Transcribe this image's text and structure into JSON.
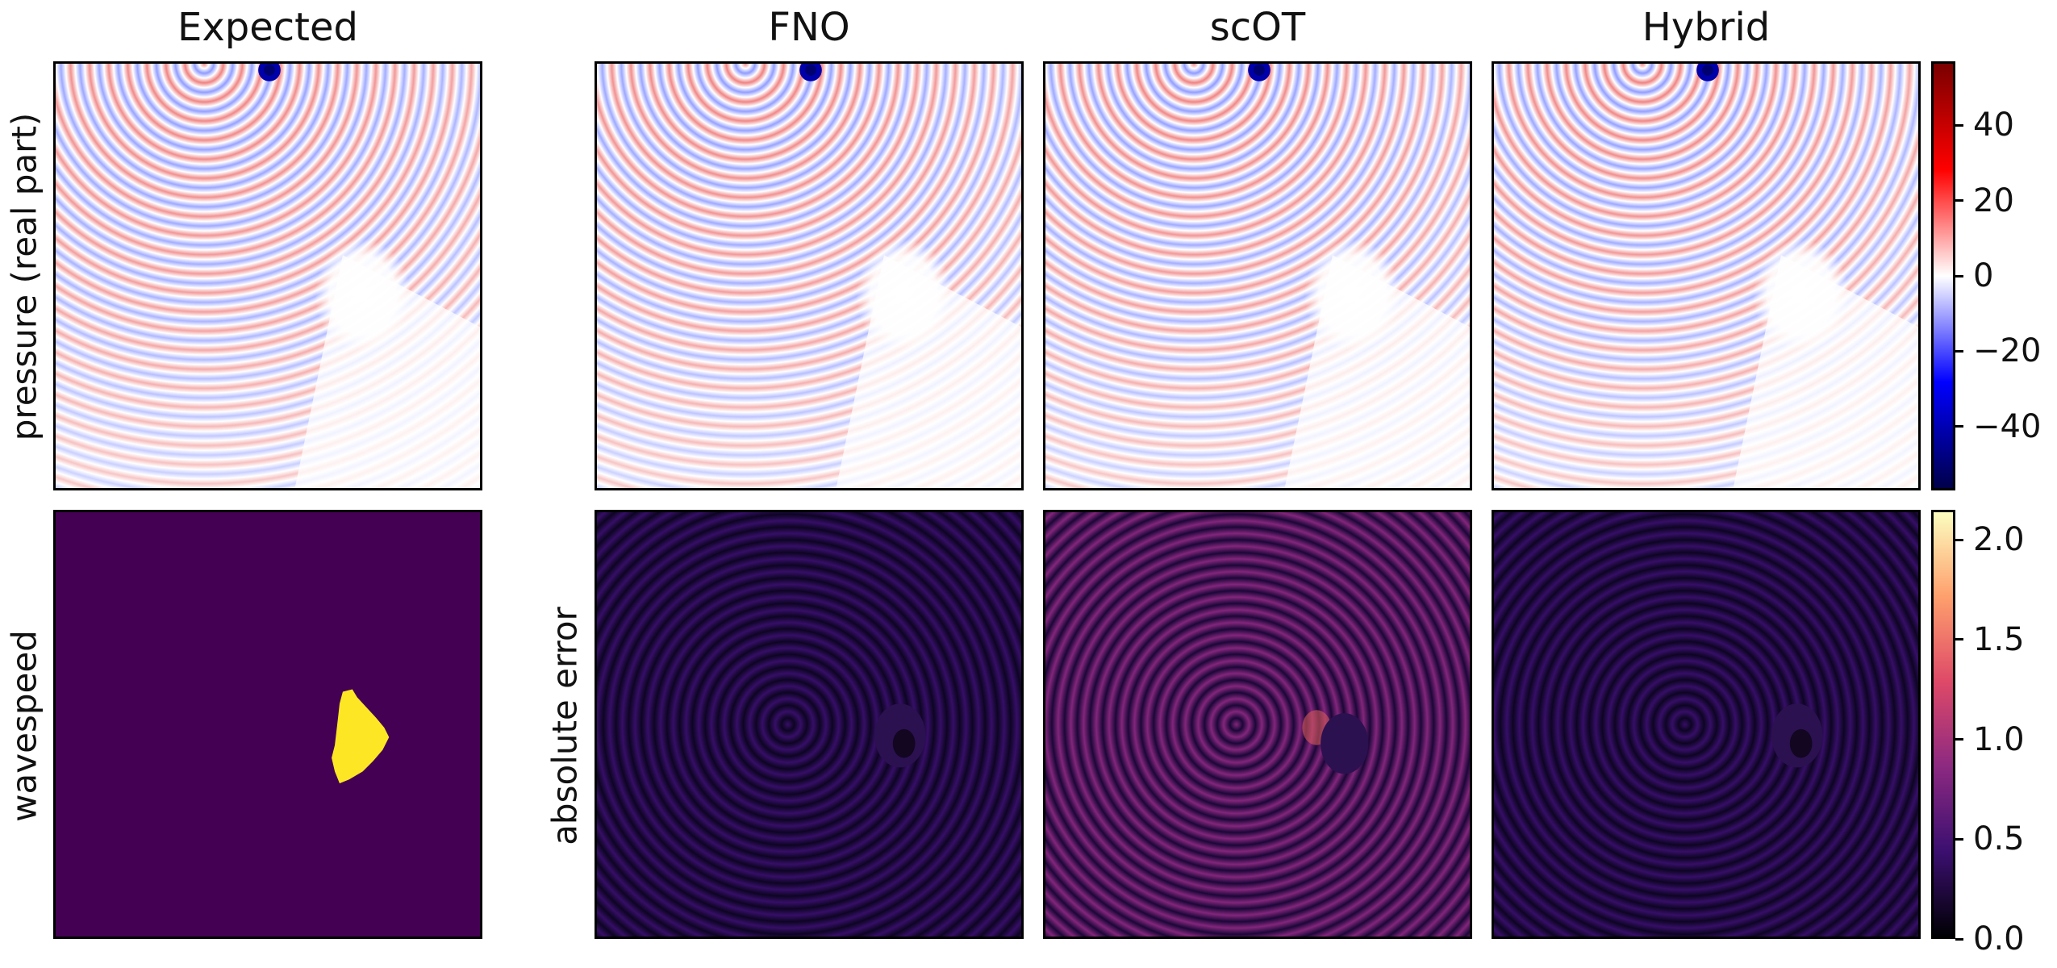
{
  "columns": {
    "expected": "Expected",
    "fno": "FNO",
    "scot": "scOT",
    "hybrid": "Hybrid"
  },
  "rows": {
    "top": "pressure (real part)",
    "bottom_left": "wavespeed",
    "bottom_right": "absolute error"
  },
  "colorbars": {
    "pressure": {
      "ticks": [
        "40",
        "20",
        "0",
        "−20",
        "−40"
      ],
      "tick_values": [
        40,
        20,
        0,
        -20,
        -40
      ],
      "range": [
        -57,
        57
      ],
      "colors": [
        "#00007a",
        "#0000ff",
        "#ffffff",
        "#ff0000",
        "#7a0000"
      ]
    },
    "error": {
      "ticks": [
        "2.0",
        "1.5",
        "1.0",
        "0.5",
        "0.0"
      ],
      "tick_values": [
        2.0,
        1.5,
        1.0,
        0.5,
        0.0
      ],
      "range": [
        0.0,
        2.15
      ],
      "colors": [
        "#000004",
        "#3b0f70",
        "#8c2981",
        "#de4968",
        "#fe9f6d",
        "#fcfdbf"
      ]
    }
  },
  "wavespeed_colors": {
    "background": "#440154",
    "inclusion": "#fde725"
  }
}
